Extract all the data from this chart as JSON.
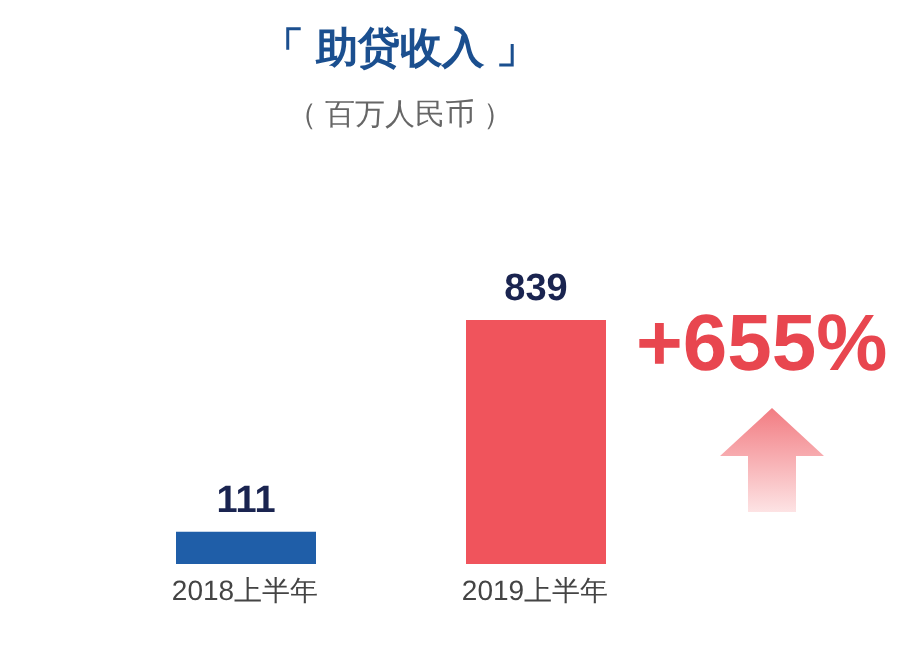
{
  "chart_data": {
    "type": "bar",
    "title": "「 助贷收入 」",
    "subtitle": "（ 百万人民币 ）",
    "categories": [
      "2018上半年",
      "2019上半年"
    ],
    "values": [
      111,
      839
    ],
    "colors": [
      "#1f5ea8",
      "#f0545c"
    ],
    "data_labels": true,
    "annotations": [
      "+655%"
    ]
  }
}
